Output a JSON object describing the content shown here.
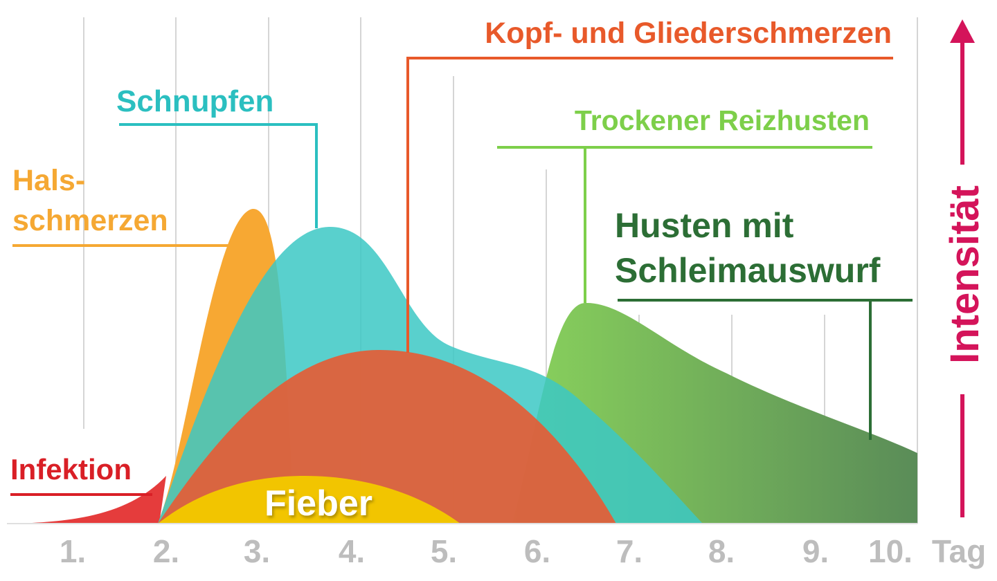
{
  "labels": {
    "infektion": "Infektion",
    "fieber": "Fieber",
    "hals_1": "Hals-",
    "hals_2": "schmerzen",
    "schnupfen": "Schnupfen",
    "kopf": "Kopf- und Gliederschmerzen",
    "trockener": "Trockener Reizhusten",
    "husten_1": "Husten mit",
    "husten_2": "Schleimauswurf"
  },
  "x_axis": {
    "days": [
      "1.",
      "2.",
      "3.",
      "4.",
      "5.",
      "6.",
      "7.",
      "8.",
      "9.",
      "10."
    ],
    "unit": "Tag"
  },
  "y_axis": {
    "label": "Intensität"
  }
}
